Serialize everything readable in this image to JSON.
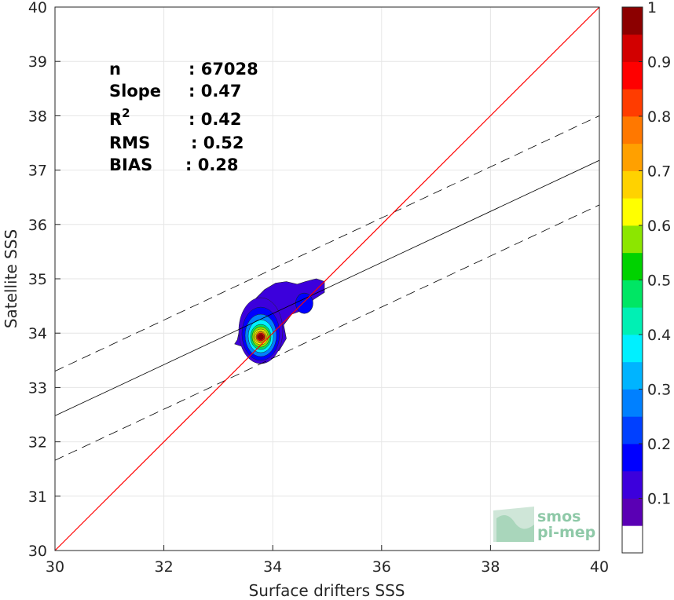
{
  "chart_data": {
    "type": "contour-scatter",
    "xlabel": "Surface drifters SSS",
    "ylabel": "Satellite SSS",
    "xlim": [
      30,
      40
    ],
    "ylim": [
      30,
      40
    ],
    "xticks": [
      "30",
      "32",
      "34",
      "36",
      "38",
      "40"
    ],
    "yticks": [
      "30",
      "31",
      "32",
      "33",
      "34",
      "35",
      "36",
      "37",
      "38",
      "39",
      "40"
    ],
    "grid": true,
    "one_to_one_line": {
      "color": "#ff0000",
      "from": [
        30,
        30
      ],
      "to": [
        40,
        40
      ]
    },
    "regression_line": {
      "slope": 0.47,
      "intercept": 18.38,
      "color": "#000000"
    },
    "confidence_lines": {
      "offset": 0.82,
      "style": "dashed",
      "color": "#000000"
    },
    "density_center": [
      33.78,
      33.93
    ],
    "stats": [
      {
        "label": "n",
        "value": ": 67028"
      },
      {
        "label": "Slope",
        "value": ": 0.47"
      },
      {
        "label": "R",
        "sup": "2",
        "value": ": 0.42"
      },
      {
        "label": "RMS",
        "value": ": 0.52"
      },
      {
        "label": "BIAS",
        "value": ": 0.28"
      }
    ],
    "colorbar": {
      "range": [
        0,
        1
      ],
      "ticks": [
        "0.1",
        "0.2",
        "0.3",
        "0.4",
        "0.5",
        "0.6",
        "0.7",
        "0.8",
        "0.9",
        "1"
      ],
      "colors": [
        "#ffffff",
        "#5a00b4",
        "#3c00dc",
        "#0000ff",
        "#0040ff",
        "#0080ff",
        "#00b4ff",
        "#00f0ff",
        "#00f0b4",
        "#00e664",
        "#00d200",
        "#8ce600",
        "#ffff00",
        "#ffd200",
        "#ffa000",
        "#ff7800",
        "#ff3c00",
        "#ff0000",
        "#d20000",
        "#8c0000"
      ]
    }
  },
  "logo": {
    "line1": "smos",
    "line2": "pi-mep"
  }
}
